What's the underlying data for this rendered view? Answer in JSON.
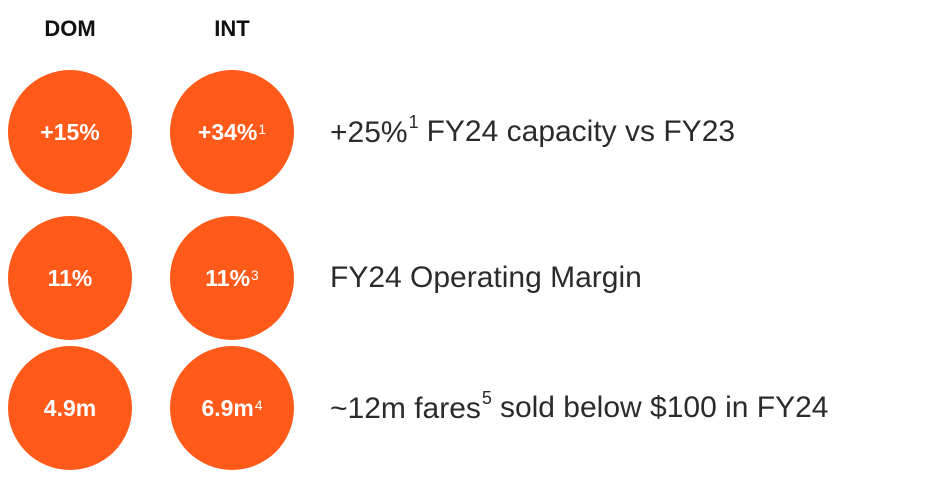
{
  "header": {
    "dom": "DOM",
    "int": "INT"
  },
  "rows": [
    {
      "dom": {
        "text": "+15%"
      },
      "int": {
        "text": "+34%",
        "note": "1"
      },
      "description": [
        {
          "text": "+25%",
          "note": "1"
        },
        {
          "text": "FY24 capacity vs FY23"
        }
      ]
    },
    {
      "dom": {
        "text": "11%"
      },
      "int": {
        "text": "11%",
        "note": "3"
      },
      "description": [
        {
          "text": "FY24 Operating Margin"
        }
      ]
    },
    {
      "dom": {
        "text": "4.9m"
      },
      "int": {
        "text": "6.9m",
        "note": "4"
      },
      "description": [
        {
          "text": "~12m fares",
          "note": "5"
        },
        {
          "text": "sold below $100 in FY24"
        }
      ]
    }
  ]
}
